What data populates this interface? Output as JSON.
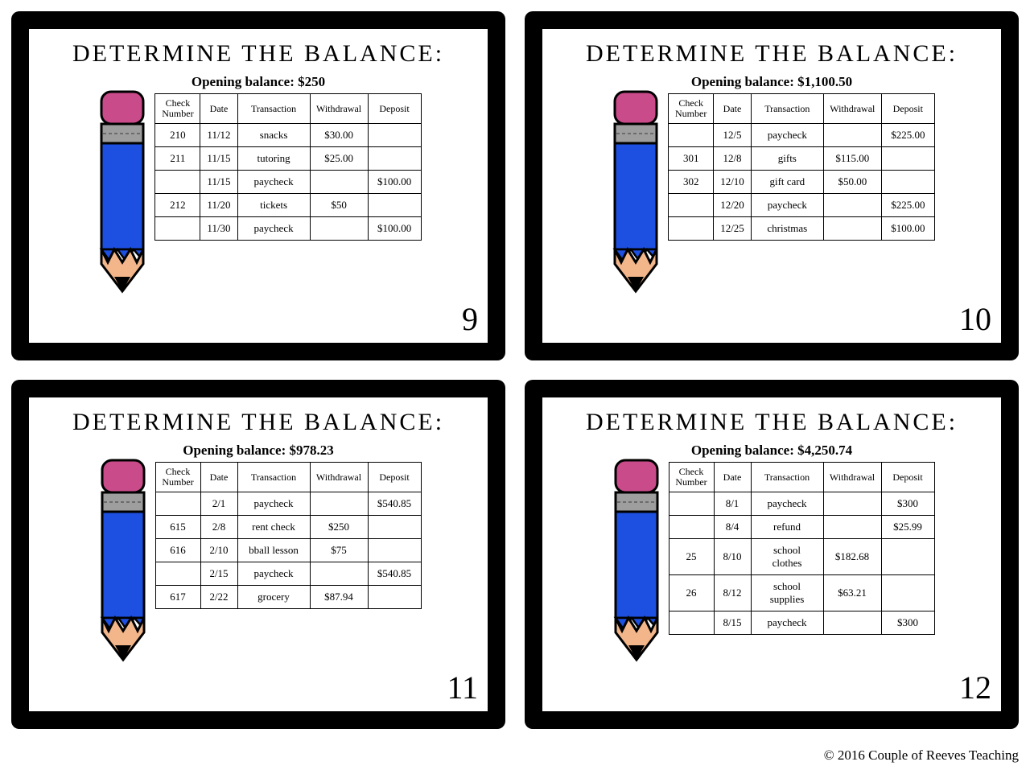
{
  "title": "DETERMINE THE BALANCE:",
  "headers": {
    "check": "Check Number",
    "date": "Date",
    "transaction": "Transaction",
    "withdrawal": "Withdrawal",
    "deposit": "Deposit"
  },
  "pencil": {
    "eraser_color": "#c94b8a",
    "ferrule_color": "#9e9e9e",
    "ferrule_stripe": "#6b6b6b",
    "body_color": "#1d4fe0",
    "wood_color": "#f2b68a",
    "tip_color": "#000000",
    "outline": "#000000"
  },
  "cards": [
    {
      "number": "9",
      "opening": "Opening balance: $250",
      "rows": [
        {
          "check": "210",
          "date": "11/12",
          "trans": "snacks",
          "with": "$30.00",
          "dep": ""
        },
        {
          "check": "211",
          "date": "11/15",
          "trans": "tutoring",
          "with": "$25.00",
          "dep": ""
        },
        {
          "check": "",
          "date": "11/15",
          "trans": "paycheck",
          "with": "",
          "dep": "$100.00"
        },
        {
          "check": "212",
          "date": "11/20",
          "trans": "tickets",
          "with": "$50",
          "dep": ""
        },
        {
          "check": "",
          "date": "11/30",
          "trans": "paycheck",
          "with": "",
          "dep": "$100.00"
        }
      ]
    },
    {
      "number": "10",
      "opening": "Opening balance: $1,100.50",
      "rows": [
        {
          "check": "",
          "date": "12/5",
          "trans": "paycheck",
          "with": "",
          "dep": "$225.00"
        },
        {
          "check": "301",
          "date": "12/8",
          "trans": "gifts",
          "with": "$115.00",
          "dep": ""
        },
        {
          "check": "302",
          "date": "12/10",
          "trans": "gift card",
          "with": "$50.00",
          "dep": ""
        },
        {
          "check": "",
          "date": "12/20",
          "trans": "paycheck",
          "with": "",
          "dep": "$225.00"
        },
        {
          "check": "",
          "date": "12/25",
          "trans": "christmas",
          "with": "",
          "dep": "$100.00"
        }
      ]
    },
    {
      "number": "11",
      "opening": "Opening balance: $978.23",
      "rows": [
        {
          "check": "",
          "date": "2/1",
          "trans": "paycheck",
          "with": "",
          "dep": "$540.85"
        },
        {
          "check": "615",
          "date": "2/8",
          "trans": "rent check",
          "with": "$250",
          "dep": ""
        },
        {
          "check": "616",
          "date": "2/10",
          "trans": "bball lesson",
          "with": "$75",
          "dep": ""
        },
        {
          "check": "",
          "date": "2/15",
          "trans": "paycheck",
          "with": "",
          "dep": "$540.85"
        },
        {
          "check": "617",
          "date": "2/22",
          "trans": "grocery",
          "with": "$87.94",
          "dep": ""
        }
      ]
    },
    {
      "number": "12",
      "opening": "Opening balance: $4,250.74",
      "rows": [
        {
          "check": "",
          "date": "8/1",
          "trans": "paycheck",
          "with": "",
          "dep": "$300"
        },
        {
          "check": "",
          "date": "8/4",
          "trans": "refund",
          "with": "",
          "dep": "$25.99"
        },
        {
          "check": "25",
          "date": "8/10",
          "trans": "school clothes",
          "with": "$182.68",
          "dep": ""
        },
        {
          "check": "26",
          "date": "8/12",
          "trans": "school supplies",
          "with": "$63.21",
          "dep": ""
        },
        {
          "check": "",
          "date": "8/15",
          "trans": "paycheck",
          "with": "",
          "dep": "$300"
        }
      ]
    }
  ],
  "copyright": "© 2016 Couple of Reeves Teaching"
}
